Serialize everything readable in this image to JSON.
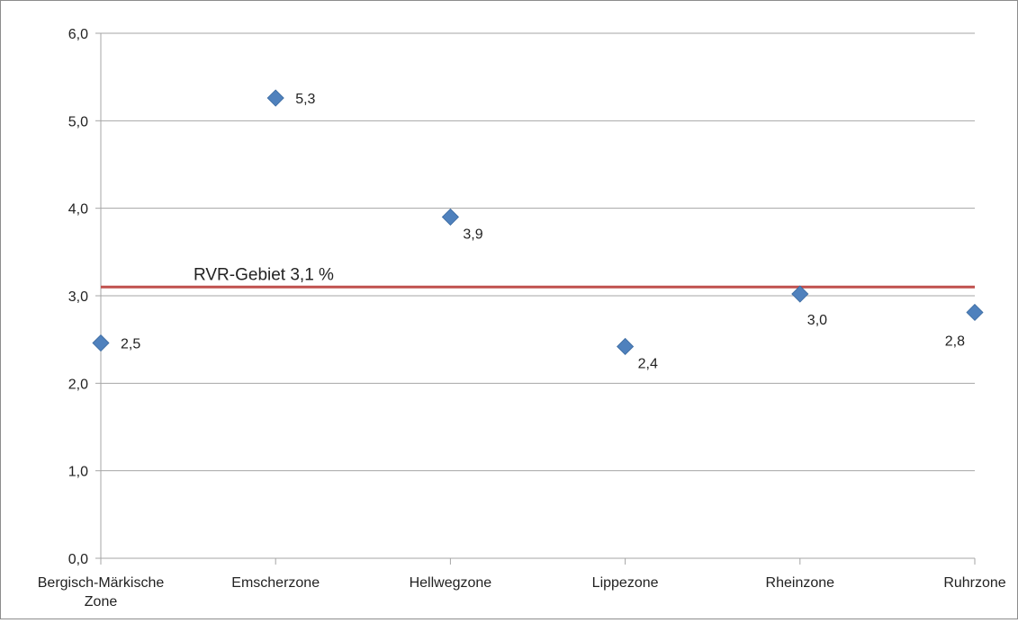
{
  "chart_data": {
    "type": "scatter",
    "categories": [
      "Bergisch-Märkische Zone",
      "Emscherzone",
      "Hellwegzone",
      "Lippezone",
      "Rheinzone",
      "Ruhrzone"
    ],
    "category_label_lines": [
      [
        "Bergisch-Märkische",
        "Zone"
      ],
      [
        "Emscherzone"
      ],
      [
        "Hellwegzone"
      ],
      [
        "Lippezone"
      ],
      [
        "Rheinzone"
      ],
      [
        "Ruhrzone"
      ]
    ],
    "values": [
      2.46,
      5.26,
      3.9,
      2.42,
      3.02,
      2.81
    ],
    "data_labels": [
      "2,5",
      "5,3",
      "3,9",
      "2,4",
      "3,0",
      "2,8"
    ],
    "data_label_placement": [
      "right",
      "right",
      "below-right",
      "below-right",
      "below",
      "below-left"
    ],
    "ylim": [
      0,
      6
    ],
    "yticks": [
      0,
      1,
      2,
      3,
      4,
      5,
      6
    ],
    "ytick_labels": [
      "0,0",
      "1,0",
      "2,0",
      "3,0",
      "4,0",
      "5,0",
      "6,0"
    ],
    "grid": true,
    "reference_line": {
      "value": 3.1,
      "label": "RVR-Gebiet 3,1 %"
    },
    "colors": {
      "marker": "#4f81bd",
      "reference_line": "#c0504d",
      "grid": "#a6a6a6"
    }
  }
}
